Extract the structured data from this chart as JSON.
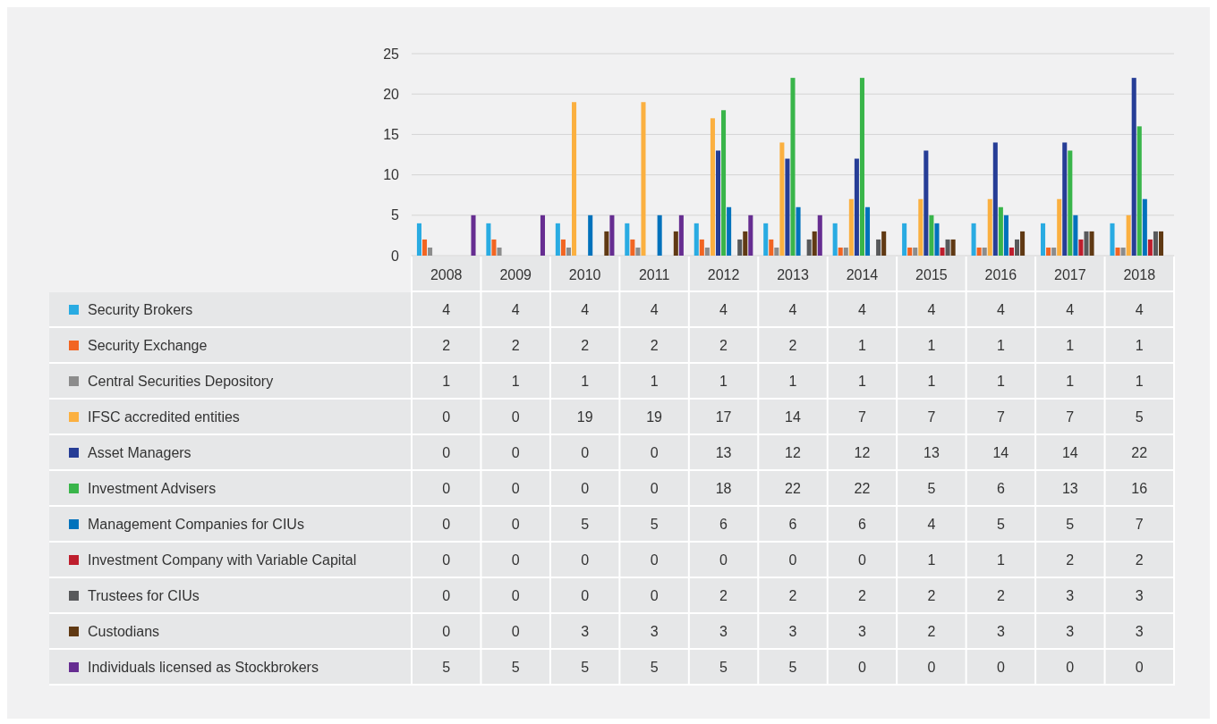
{
  "chart_data": {
    "type": "bar",
    "categories": [
      "2008",
      "2009",
      "2010",
      "2011",
      "2012",
      "2013",
      "2014",
      "2015",
      "2016",
      "2017",
      "2018"
    ],
    "ylim": [
      0,
      25
    ],
    "yticks": [
      0,
      5,
      10,
      15,
      20,
      25
    ],
    "grid": "y",
    "legend": "left",
    "data_labels": true,
    "series": [
      {
        "name": "Security Brokers",
        "color": "#29abe2",
        "values": [
          4,
          4,
          4,
          4,
          4,
          4,
          4,
          4,
          4,
          4,
          4
        ]
      },
      {
        "name": "Security Exchange",
        "color": "#f26522",
        "values": [
          2,
          2,
          2,
          2,
          2,
          2,
          1,
          1,
          1,
          1,
          1
        ]
      },
      {
        "name": "Central Securities Depository",
        "color": "#8c8c8c",
        "values": [
          1,
          1,
          1,
          1,
          1,
          1,
          1,
          1,
          1,
          1,
          1
        ]
      },
      {
        "name": "IFSC accredited entities",
        "color": "#fbb040",
        "values": [
          0,
          0,
          19,
          19,
          17,
          14,
          7,
          7,
          7,
          7,
          5
        ]
      },
      {
        "name": "Asset Managers",
        "color": "#263d96",
        "values": [
          0,
          0,
          0,
          0,
          13,
          12,
          12,
          13,
          14,
          14,
          22
        ]
      },
      {
        "name": "Investment Advisers",
        "color": "#39b54a",
        "values": [
          0,
          0,
          0,
          0,
          18,
          22,
          22,
          5,
          6,
          13,
          16
        ]
      },
      {
        "name": "Management Companies for CIUs",
        "color": "#0072bc",
        "values": [
          0,
          0,
          5,
          5,
          6,
          6,
          6,
          4,
          5,
          5,
          7
        ]
      },
      {
        "name": "Investment Company with Variable Capital",
        "color": "#be1e2d",
        "values": [
          0,
          0,
          0,
          0,
          0,
          0,
          0,
          1,
          1,
          2,
          2
        ]
      },
      {
        "name": "Trustees for CIUs",
        "color": "#58595b",
        "values": [
          0,
          0,
          0,
          0,
          2,
          2,
          2,
          2,
          2,
          3,
          3
        ]
      },
      {
        "name": "Custodians",
        "color": "#603913",
        "values": [
          0,
          0,
          3,
          3,
          3,
          3,
          3,
          2,
          3,
          3,
          3
        ]
      },
      {
        "name": "Individuals licensed as Stockbrokers",
        "color": "#662d91",
        "values": [
          5,
          5,
          5,
          5,
          5,
          5,
          0,
          0,
          0,
          0,
          0
        ]
      }
    ]
  }
}
